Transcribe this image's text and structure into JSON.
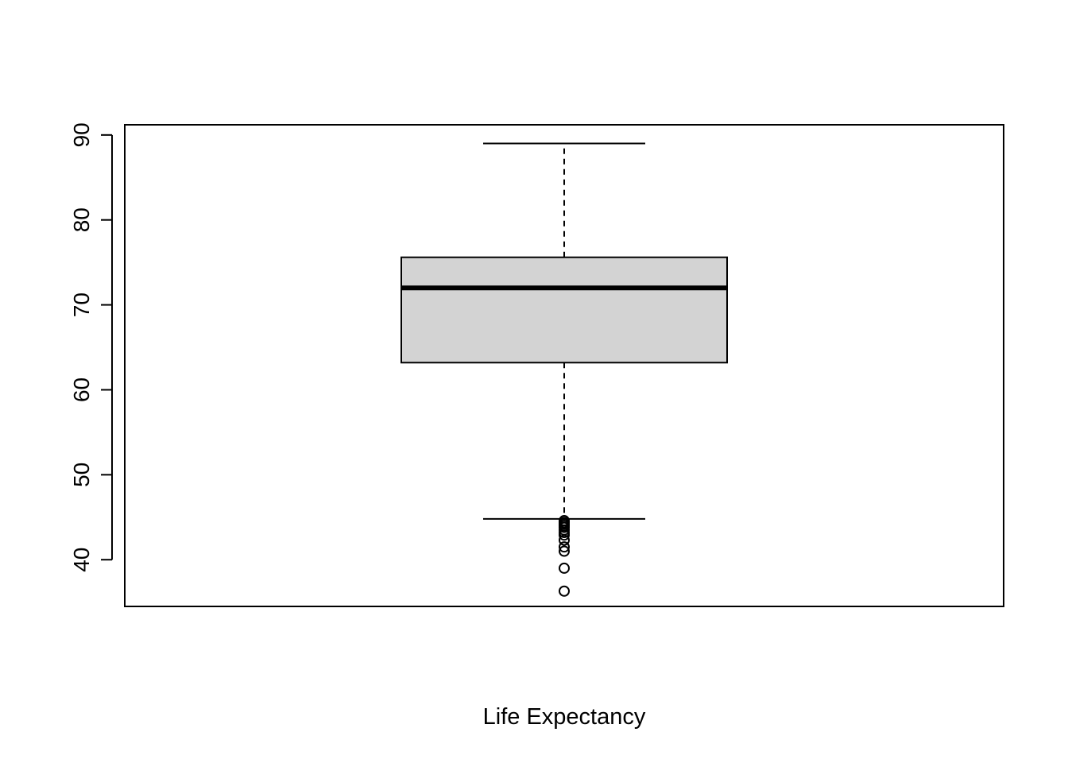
{
  "chart_data": {
    "type": "boxplot",
    "title": "",
    "xlabel": "Life Expectancy",
    "ylabel": "",
    "ylim": [
      34.5,
      91.2
    ],
    "yticks": [
      40,
      50,
      60,
      70,
      80,
      90
    ],
    "grid": false,
    "box_color": "#d3d3d3",
    "series": [
      {
        "whisker_low": 44.8,
        "q1": 63.2,
        "median": 72.0,
        "q3": 75.6,
        "whisker_high": 89.0,
        "outliers": [
          44.6,
          44.4,
          44.2,
          44.0,
          43.8,
          43.5,
          43.2,
          42.9,
          42.3,
          41.5,
          41.0,
          39.0,
          36.3
        ]
      }
    ]
  }
}
